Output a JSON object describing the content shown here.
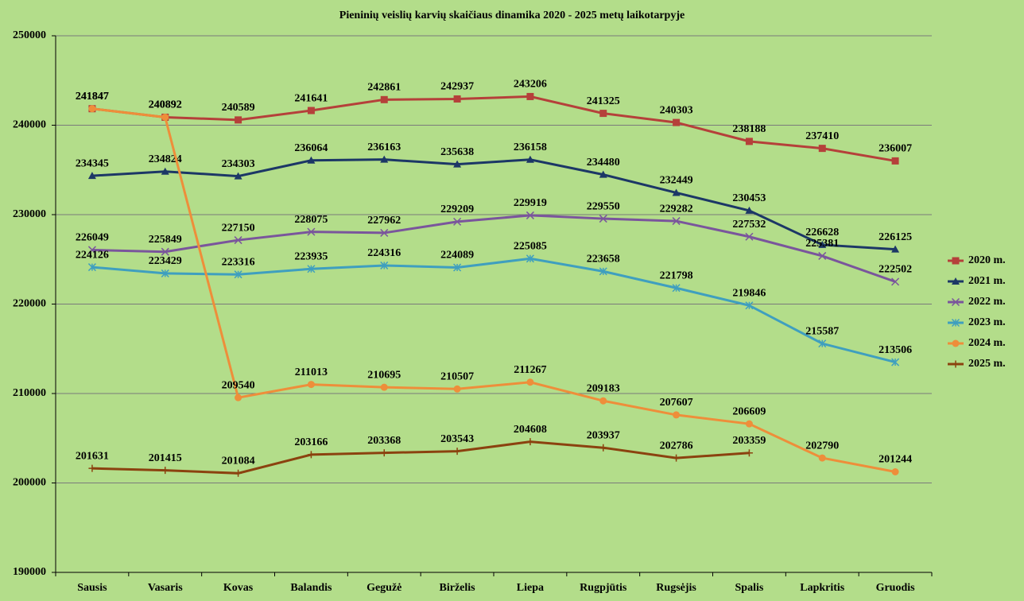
{
  "chart_data": {
    "type": "line",
    "title": "Pieninių  veislių karvių  skaičiaus dinamika  2020 - 2025 metų  laikotarpyje",
    "categories": [
      "Sausis",
      "Vasaris",
      "Kovas",
      "Balandis",
      "Gegužė",
      "Birželis",
      "Liepa",
      "Rugpjūtis",
      "Rugsėjis",
      "Spalis",
      "Lapkritis",
      "Gruodis"
    ],
    "series": [
      {
        "name": "2020 m.",
        "color": "#b5403a",
        "marker": "square",
        "values": [
          241847,
          240892,
          240589,
          241641,
          242861,
          242937,
          243206,
          241325,
          240303,
          238188,
          237410,
          236007
        ]
      },
      {
        "name": "2021 m.",
        "color": "#1c3766",
        "marker": "triangle",
        "values": [
          234345,
          234824,
          234303,
          236064,
          236163,
          235638,
          236158,
          234480,
          232449,
          230453,
          226628,
          226125
        ]
      },
      {
        "name": "2022 m.",
        "color": "#7a559c",
        "marker": "x",
        "values": [
          226049,
          225849,
          227150,
          228075,
          227962,
          229209,
          229919,
          229550,
          229282,
          227532,
          225381,
          222502
        ]
      },
      {
        "name": "2023 m.",
        "color": "#3f9fbf",
        "marker": "star",
        "values": [
          224126,
          223429,
          223316,
          223935,
          224316,
          224089,
          225085,
          223658,
          221798,
          219846,
          215587,
          213506
        ]
      },
      {
        "name": "2024 m.",
        "color": "#ee8e3a",
        "marker": "circle",
        "values": [
          241847,
          240892,
          209540,
          211013,
          210695,
          210507,
          211267,
          209183,
          207607,
          206609,
          202790,
          201244
        ]
      },
      {
        "name": "2025 m.",
        "color": "#8b420f",
        "marker": "plus",
        "values": [
          201631,
          201415,
          201084,
          203166,
          203368,
          203543,
          204608,
          203937,
          202786,
          203359,
          null,
          null
        ]
      }
    ],
    "ylim": [
      190000,
      250000
    ],
    "yticks": [
      190000,
      200000,
      210000,
      220000,
      230000,
      240000,
      250000
    ],
    "grid": true,
    "legend": "right"
  }
}
